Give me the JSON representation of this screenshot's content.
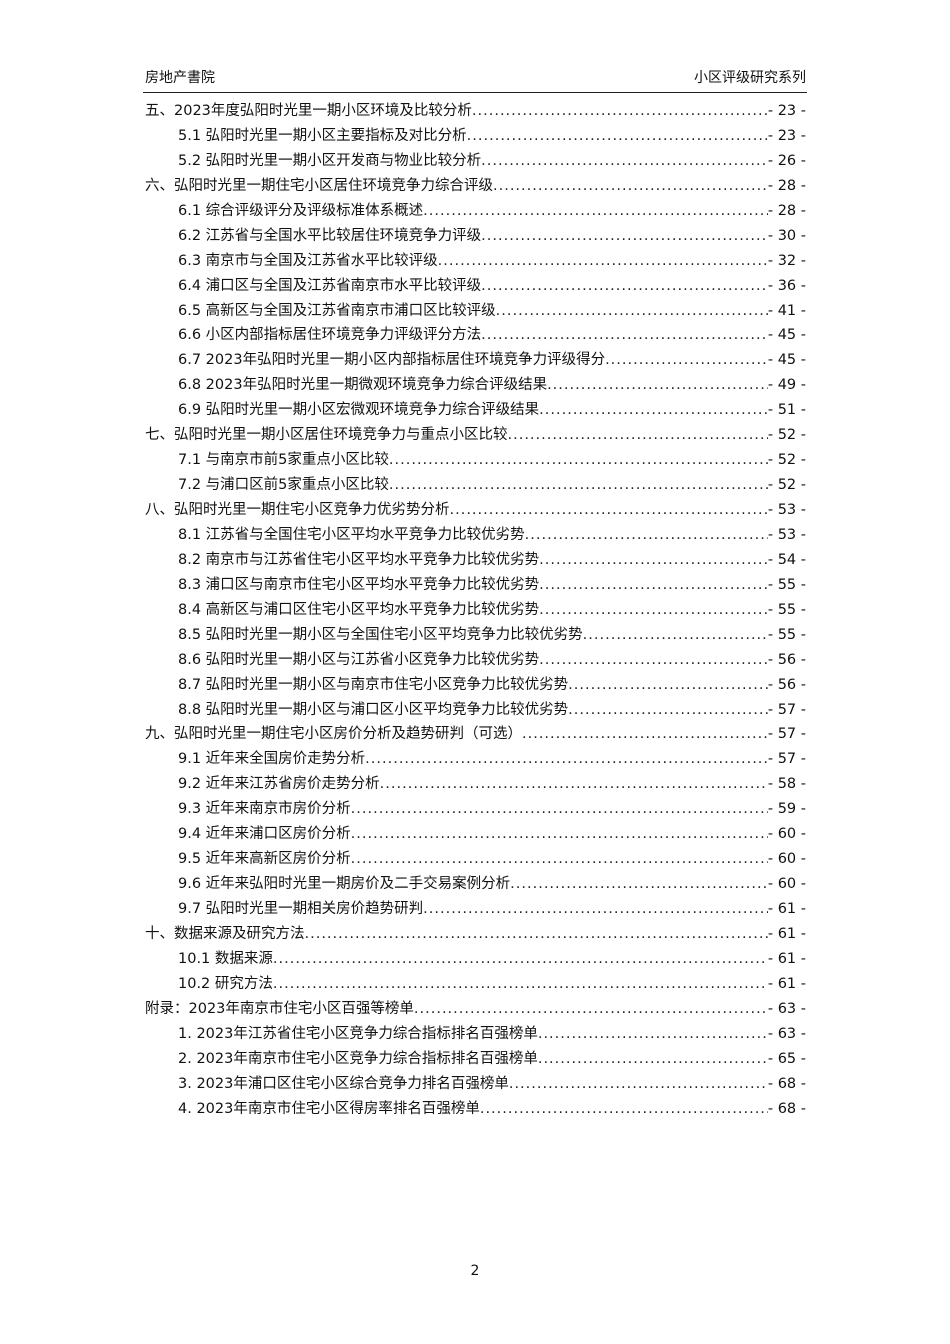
{
  "header": {
    "left": "房地产書院",
    "right": "小区评级研究系列"
  },
  "toc": [
    {
      "level": 1,
      "title": "五、2023年度弘阳时光里一期小区环境及比较分析",
      "page": "- 23 -"
    },
    {
      "level": 2,
      "title": "5.1 弘阳时光里一期小区主要指标及对比分析",
      "page": "- 23 -"
    },
    {
      "level": 2,
      "title": "5.2 弘阳时光里一期小区开发商与物业比较分析",
      "page": "- 26 -"
    },
    {
      "level": 1,
      "title": "六、弘阳时光里一期住宅小区居住环境竞争力综合评级",
      "page": "- 28 -"
    },
    {
      "level": 2,
      "title": "6.1 综合评级评分及评级标准体系概述",
      "page": "- 28 -"
    },
    {
      "level": 2,
      "title": "6.2 江苏省与全国水平比较居住环境竞争力评级",
      "page": "- 30 -"
    },
    {
      "level": 2,
      "title": "6.3 南京市与全国及江苏省水平比较评级",
      "page": "- 32 -"
    },
    {
      "level": 2,
      "title": "6.4 浦口区与全国及江苏省南京市水平比较评级",
      "page": "- 36 -"
    },
    {
      "level": 2,
      "title": "6.5 高新区与全国及江苏省南京市浦口区比较评级",
      "page": "- 41 -"
    },
    {
      "level": 2,
      "title": "6.6 小区内部指标居住环境竞争力评级评分方法",
      "page": "- 45 -"
    },
    {
      "level": 2,
      "title": "6.7 2023年弘阳时光里一期小区内部指标居住环境竞争力评级得分",
      "page": "- 45 -"
    },
    {
      "level": 2,
      "title": "6.8 2023年弘阳时光里一期微观环境竞争力综合评级结果",
      "page": "- 49 -"
    },
    {
      "level": 2,
      "title": "6.9 弘阳时光里一期小区宏微观环境竞争力综合评级结果",
      "page": "- 51 -"
    },
    {
      "level": 1,
      "title": "七、弘阳时光里一期小区居住环境竞争力与重点小区比较",
      "page": "- 52 -"
    },
    {
      "level": 2,
      "title": "7.1 与南京市前5家重点小区比较",
      "page": "- 52 -"
    },
    {
      "level": 2,
      "title": "7.2 与浦口区前5家重点小区比较",
      "page": "- 52 -"
    },
    {
      "level": 1,
      "title": "八、弘阳时光里一期住宅小区竞争力优劣势分析",
      "page": "- 53 -"
    },
    {
      "level": 2,
      "title": "8.1 江苏省与全国住宅小区平均水平竞争力比较优劣势",
      "page": "- 53 -"
    },
    {
      "level": 2,
      "title": "8.2 南京市与江苏省住宅小区平均水平竞争力比较优劣势",
      "page": "- 54 -"
    },
    {
      "level": 2,
      "title": "8.3 浦口区与南京市住宅小区平均水平竞争力比较优劣势",
      "page": "- 55 -"
    },
    {
      "level": 2,
      "title": "8.4 高新区与浦口区住宅小区平均水平竞争力比较优劣势",
      "page": "- 55 -"
    },
    {
      "level": 2,
      "title": "8.5 弘阳时光里一期小区与全国住宅小区平均竞争力比较优劣势",
      "page": "- 55 -"
    },
    {
      "level": 2,
      "title": "8.6 弘阳时光里一期小区与江苏省小区竞争力比较优劣势",
      "page": "- 56 -"
    },
    {
      "level": 2,
      "title": "8.7 弘阳时光里一期小区与南京市住宅小区竞争力比较优劣势",
      "page": "- 56 -"
    },
    {
      "level": 2,
      "title": "8.8 弘阳时光里一期小区与浦口区小区平均竞争力比较优劣势",
      "page": "- 57 -"
    },
    {
      "level": 1,
      "title": "九、弘阳时光里一期住宅小区房价分析及趋势研判（可选）",
      "page": "- 57 -"
    },
    {
      "level": 2,
      "title": "9.1 近年来全国房价走势分析",
      "page": "- 57 -"
    },
    {
      "level": 2,
      "title": "9.2 近年来江苏省房价走势分析",
      "page": "- 58 -"
    },
    {
      "level": 2,
      "title": "9.3 近年来南京市房价分析",
      "page": "- 59 -"
    },
    {
      "level": 2,
      "title": "9.4 近年来浦口区房价分析",
      "page": "- 60 -"
    },
    {
      "level": 2,
      "title": "9.5 近年来高新区房价分析",
      "page": "- 60 -"
    },
    {
      "level": 2,
      "title": "9.6 近年来弘阳时光里一期房价及二手交易案例分析",
      "page": "- 60 -"
    },
    {
      "level": 2,
      "title": "9.7 弘阳时光里一期相关房价趋势研判",
      "page": "- 61 -"
    },
    {
      "level": 1,
      "title": "十、数据来源及研究方法",
      "page": "- 61 -"
    },
    {
      "level": 2,
      "title": "10.1 数据来源",
      "page": "- 61 -"
    },
    {
      "level": 2,
      "title": "10.2 研究方法",
      "page": "- 61 -"
    },
    {
      "level": 1,
      "title": "附录：2023年南京市住宅小区百强等榜单",
      "page": "- 63 -"
    },
    {
      "level": 2,
      "title": "1. 2023年江苏省住宅小区竞争力综合指标排名百强榜单",
      "page": "- 63 -"
    },
    {
      "level": 2,
      "title": "2. 2023年南京市住宅小区竞争力综合指标排名百强榜单",
      "page": "- 65 -"
    },
    {
      "level": 2,
      "title": "3. 2023年浦口区住宅小区综合竞争力排名百强榜单",
      "page": "- 68 -"
    },
    {
      "level": 2,
      "title": "4. 2023年南京市住宅小区得房率排名百强榜单",
      "page": "- 68 -"
    }
  ],
  "footer": {
    "page_number": "2"
  }
}
